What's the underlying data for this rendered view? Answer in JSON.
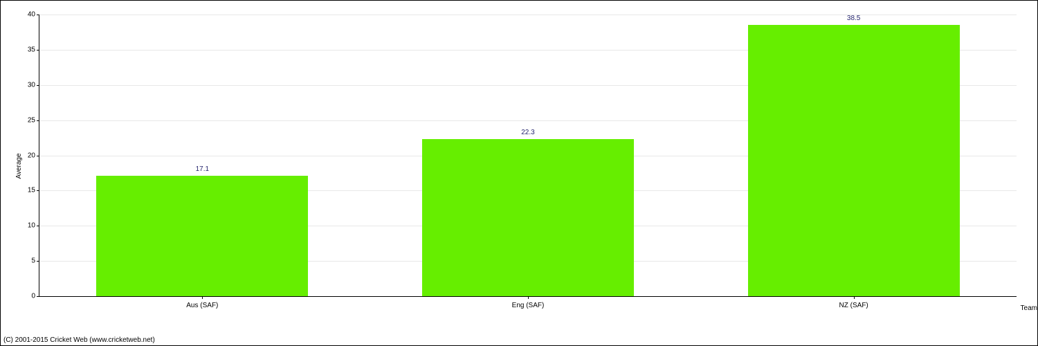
{
  "chart": {
    "type": "bar",
    "ylabel": "Average",
    "xlabel": "Team",
    "ylim": [
      0,
      40
    ],
    "ytick_step": 5,
    "categories": [
      "Aus (SAF)",
      "Eng (SAF)",
      "NZ (SAF)"
    ],
    "values": [
      17.1,
      22.3,
      38.5
    ],
    "bar_color": "#66ee00",
    "bar_width": 0.65,
    "background_color": "#ffffff",
    "grid_color": "#e8e8e8",
    "axis_color": "#000000",
    "value_label_color": "#26266e",
    "tick_fontsize": 10,
    "label_fontsize": 10
  },
  "copyright": "(C) 2001-2015 Cricket Web (www.cricketweb.net)"
}
